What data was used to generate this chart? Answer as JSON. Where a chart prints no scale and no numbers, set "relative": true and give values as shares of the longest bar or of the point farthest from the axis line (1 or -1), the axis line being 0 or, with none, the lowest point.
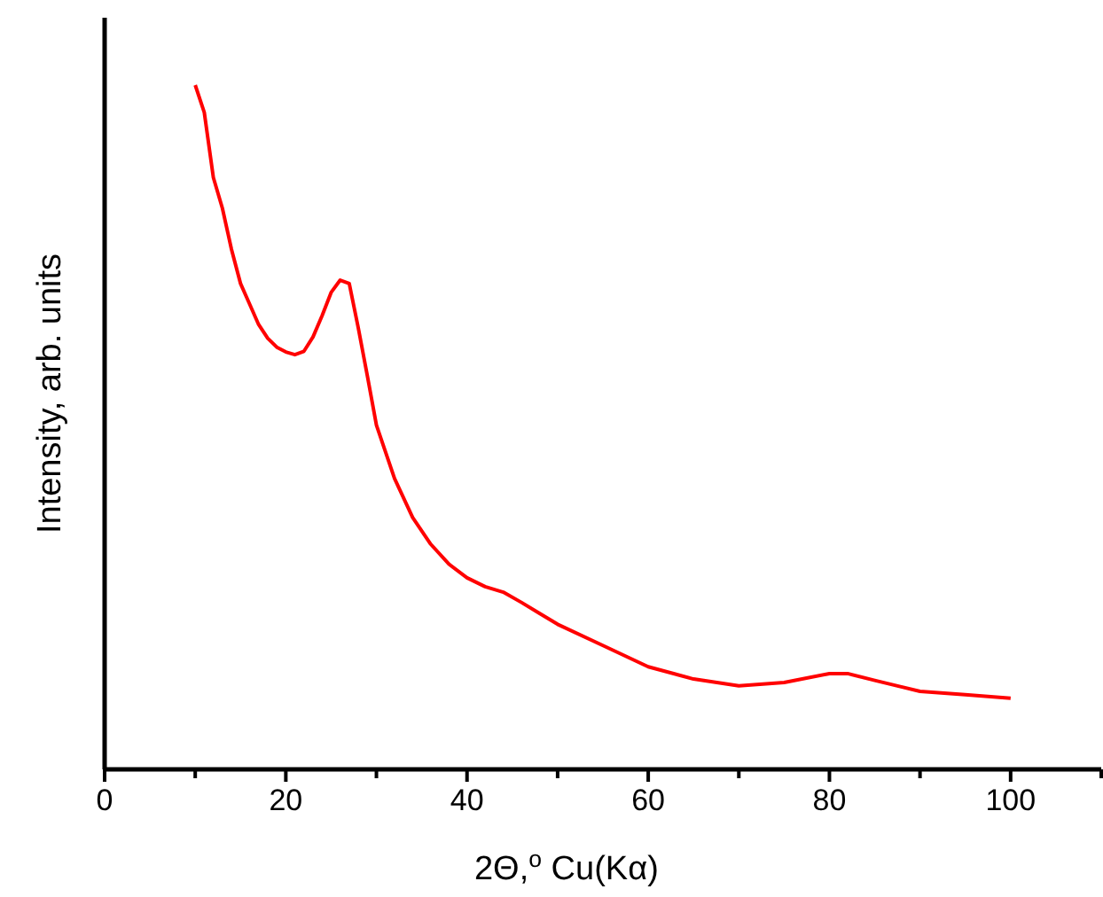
{
  "chart_data": {
    "type": "line",
    "relative": true,
    "xlabel": "2Θ,$^{o}$ Cu(Kα)",
    "ylabel": "Intensity, arb. units",
    "xlim": [
      0,
      110
    ],
    "xticks": [
      0,
      {
        "value": 10,
        "label": null
      },
      20,
      {
        "value": 30,
        "label": null
      },
      40,
      {
        "value": 50,
        "label": null
      },
      60,
      {
        "value": 70,
        "label": null
      },
      80,
      {
        "value": 90,
        "label": null
      },
      100,
      {
        "value": 110,
        "label": null
      }
    ],
    "grid": false,
    "marker": "none",
    "line_style": "solid",
    "series": [
      {
        "color": "#ff0000",
        "x": [
          10,
          11,
          12,
          13,
          14,
          15,
          16,
          17,
          18,
          19,
          20,
          21,
          22,
          23,
          24,
          25,
          26,
          27,
          28,
          29,
          30,
          32,
          34,
          36,
          38,
          40,
          42,
          44,
          46,
          48,
          50,
          55,
          60,
          65,
          70,
          75,
          80,
          82,
          85,
          90,
          95,
          100
        ],
        "values": [
          1.0,
          0.96,
          0.865,
          0.82,
          0.76,
          0.71,
          0.68,
          0.65,
          0.63,
          0.617,
          0.61,
          0.606,
          0.611,
          0.632,
          0.663,
          0.697,
          0.715,
          0.71,
          0.645,
          0.575,
          0.503,
          0.425,
          0.368,
          0.329,
          0.3,
          0.28,
          0.267,
          0.259,
          0.244,
          0.228,
          0.212,
          0.181,
          0.15,
          0.132,
          0.122,
          0.127,
          0.14,
          0.14,
          0.13,
          0.114,
          0.109,
          0.104
        ]
      }
    ]
  }
}
